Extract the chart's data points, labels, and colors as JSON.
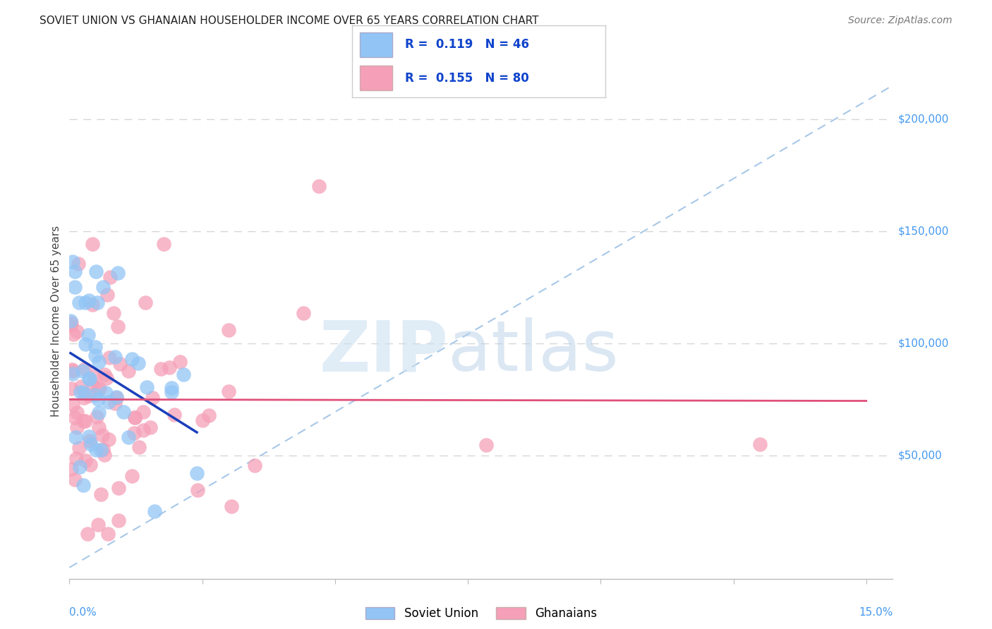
{
  "title": "SOVIET UNION VS GHANAIAN HOUSEHOLDER INCOME OVER 65 YEARS CORRELATION CHART",
  "source": "Source: ZipAtlas.com",
  "ylabel": "Householder Income Over 65 years",
  "xlim": [
    0.0,
    0.155
  ],
  "ylim": [
    -5000,
    225000
  ],
  "ytick_positions": [
    50000,
    100000,
    150000,
    200000
  ],
  "ytick_labels": [
    "$50,000",
    "$100,000",
    "$150,000",
    "$200,000"
  ],
  "xtick_positions": [
    0.0,
    0.025,
    0.05,
    0.075,
    0.1,
    0.125,
    0.15
  ],
  "legend_r1_text": "R =  0.119   N = 46",
  "legend_r2_text": "R =  0.155   N = 80",
  "soviet_dot_color": "#92c5f5",
  "ghanaian_dot_color": "#f5a0b8",
  "soviet_line_color": "#1a3fba",
  "ghanaian_line_color": "#e0507a",
  "dashed_line_color": "#a8c8e8",
  "grid_color": "#cccccc",
  "label_color": "#4499ee",
  "title_color": "#222222",
  "source_color": "#777777",
  "watermark_zip_color": "#cce0f0",
  "watermark_atlas_color": "#b8d0e8"
}
